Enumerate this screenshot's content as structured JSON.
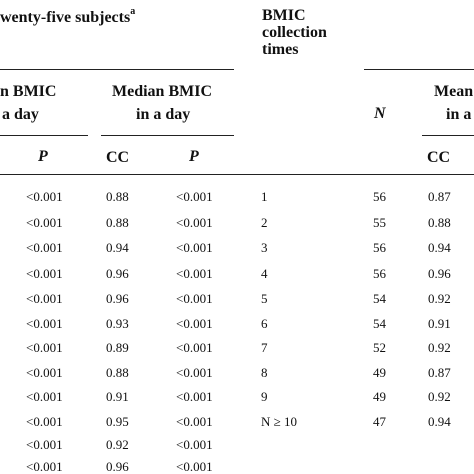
{
  "left_group": {
    "title": "wenty-five subjects",
    "title_sup": "a",
    "mean_header_line1": "n BMIC",
    "mean_header_line2": "a day",
    "median_header_line1": "Median BMIC",
    "median_header_line2": "in a day",
    "p_label_1": "P",
    "cc_label": "CC",
    "p_label_2": "P"
  },
  "right_group": {
    "collection_header_line1": "BMIC",
    "collection_header_line2": "collection",
    "collection_header_line3": "times",
    "n_label": "N",
    "mean_header_line1": "Mean",
    "mean_header_line2": "in a",
    "cc_label": "CC"
  },
  "left_rows": [
    {
      "p1": "<0.001",
      "cc": "0.88",
      "p2": "<0.001"
    },
    {
      "p1": "<0.001",
      "cc": "0.88",
      "p2": "<0.001"
    },
    {
      "p1": "<0.001",
      "cc": "0.94",
      "p2": "<0.001"
    },
    {
      "p1": "<0.001",
      "cc": "0.96",
      "p2": "<0.001"
    },
    {
      "p1": "<0.001",
      "cc": "0.96",
      "p2": "<0.001"
    },
    {
      "p1": "<0.001",
      "cc": "0.93",
      "p2": "<0.001"
    },
    {
      "p1": "<0.001",
      "cc": "0.89",
      "p2": "<0.001"
    },
    {
      "p1": "<0.001",
      "cc": "0.88",
      "p2": "<0.001"
    },
    {
      "p1": "<0.001",
      "cc": "0.91",
      "p2": "<0.001"
    },
    {
      "p1": "<0.001",
      "cc": "0.95",
      "p2": "<0.001"
    },
    {
      "p1": "<0.001",
      "cc": "0.92",
      "p2": "<0.001"
    },
    {
      "p1": "<0.001",
      "cc": "0.96",
      "p2": "<0.001"
    }
  ],
  "right_rows": [
    {
      "times": "1",
      "n": "56",
      "cc": "0.87"
    },
    {
      "times": "2",
      "n": "55",
      "cc": "0.88"
    },
    {
      "times": "3",
      "n": "56",
      "cc": "0.94"
    },
    {
      "times": "4",
      "n": "56",
      "cc": "0.96"
    },
    {
      "times": "5",
      "n": "54",
      "cc": "0.92"
    },
    {
      "times": "6",
      "n": "54",
      "cc": "0.91"
    },
    {
      "times": "7",
      "n": "52",
      "cc": "0.92"
    },
    {
      "times": "8",
      "n": "49",
      "cc": "0.87"
    },
    {
      "times": "9",
      "n": "49",
      "cc": "0.92"
    },
    {
      "times": "N ≥ 10",
      "n": "47",
      "cc": "0.94"
    }
  ]
}
